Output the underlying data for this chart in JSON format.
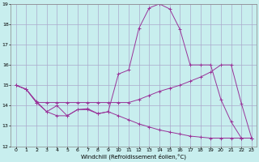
{
  "xlabel": "Windchill (Refroidissement éolien,°C)",
  "background_color": "#c8eeee",
  "grid_color": "#aaaacc",
  "line_color": "#993399",
  "x_min": 0,
  "x_max": 23,
  "y_min": 12,
  "y_max": 19,
  "yticks": [
    12,
    13,
    14,
    15,
    16,
    17,
    18,
    19
  ],
  "xticks": [
    0,
    1,
    2,
    3,
    4,
    5,
    6,
    7,
    8,
    9,
    10,
    11,
    12,
    13,
    14,
    15,
    16,
    17,
    18,
    19,
    20,
    21,
    22,
    23
  ],
  "line1_x": [
    0,
    1,
    2,
    3,
    4,
    5,
    6,
    7,
    8,
    9,
    10,
    11,
    12,
    13,
    14,
    15,
    16,
    17,
    18,
    19,
    20,
    21,
    22,
    23
  ],
  "line1_y": [
    15.0,
    14.8,
    14.2,
    13.7,
    14.0,
    13.5,
    13.8,
    13.8,
    13.6,
    13.7,
    15.55,
    15.75,
    17.8,
    18.8,
    19.0,
    18.75,
    17.75,
    16.0,
    16.0,
    16.0,
    14.3,
    13.2,
    12.4,
    12.4
  ],
  "line2_x": [
    0,
    1,
    2,
    3,
    4,
    5,
    6,
    7,
    8,
    9,
    10,
    11,
    12,
    13,
    14,
    15,
    16,
    17,
    18,
    19,
    20,
    21,
    22,
    23
  ],
  "line2_y": [
    15.0,
    14.8,
    14.15,
    14.15,
    14.15,
    14.15,
    14.15,
    14.15,
    14.15,
    14.15,
    14.15,
    14.15,
    14.3,
    14.5,
    14.7,
    14.85,
    15.0,
    15.2,
    15.4,
    15.65,
    16.0,
    16.0,
    14.1,
    12.4
  ],
  "line3_x": [
    0,
    1,
    2,
    3,
    4,
    5,
    6,
    7,
    8,
    9,
    10,
    11,
    12,
    13,
    14,
    15,
    16,
    17,
    18,
    19,
    20,
    21,
    22,
    23
  ],
  "line3_y": [
    15.0,
    14.8,
    14.15,
    13.7,
    13.5,
    13.5,
    13.8,
    13.85,
    13.6,
    13.7,
    13.5,
    13.3,
    13.1,
    12.95,
    12.8,
    12.7,
    12.6,
    12.5,
    12.45,
    12.4,
    12.4,
    12.4,
    12.4,
    12.4
  ]
}
